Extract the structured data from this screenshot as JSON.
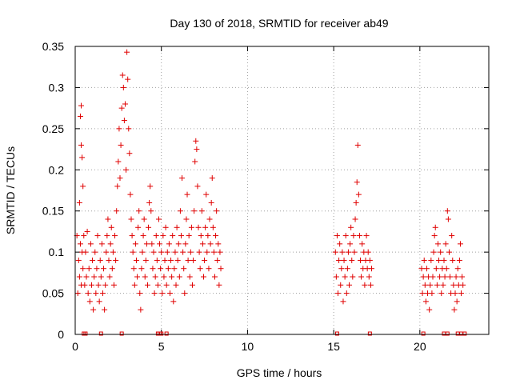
{
  "chart_data": {
    "type": "scatter",
    "title": "Day 130 of 2018, SRMTID for receiver ab49",
    "xlabel": "GPS time / hours",
    "ylabel": "SRMTID / TECUs",
    "xlim": [
      0,
      24
    ],
    "ylim": [
      0,
      0.35
    ],
    "grid": true,
    "marker": "+",
    "color": "#e00000",
    "x_ticks": [
      {
        "value": 0,
        "label": "0"
      },
      {
        "value": 5,
        "label": "5"
      },
      {
        "value": 10,
        "label": "10"
      },
      {
        "value": 15,
        "label": "15"
      },
      {
        "value": 20,
        "label": "20"
      }
    ],
    "y_ticks": [
      {
        "value": 0,
        "label": "0"
      },
      {
        "value": 0.05,
        "label": "0.05"
      },
      {
        "value": 0.1,
        "label": "0.1"
      },
      {
        "value": 0.15,
        "label": "0.15"
      },
      {
        "value": 0.2,
        "label": "0.2"
      },
      {
        "value": 0.25,
        "label": "0.25"
      },
      {
        "value": 0.3,
        "label": "0.3"
      },
      {
        "value": 0.35,
        "label": "0.35"
      }
    ],
    "series": [
      {
        "name": "SRMTID",
        "points": [
          [
            0.1,
            0.12
          ],
          [
            0.15,
            0.05
          ],
          [
            0.2,
            0.09
          ],
          [
            0.25,
            0.16
          ],
          [
            0.25,
            0.07
          ],
          [
            0.3,
            0.265
          ],
          [
            0.3,
            0.11
          ],
          [
            0.35,
            0.278
          ],
          [
            0.35,
            0.23
          ],
          [
            0.35,
            0.06
          ],
          [
            0.4,
            0.215
          ],
          [
            0.4,
            0.1
          ],
          [
            0.45,
            0.18
          ],
          [
            0.45,
            0.08
          ],
          [
            0.5,
            0.12
          ],
          [
            0.55,
            0.06
          ],
          [
            0.6,
            0.1
          ],
          [
            0.65,
            0.07
          ],
          [
            0.7,
            0.125
          ],
          [
            0.75,
            0.05
          ],
          [
            0.8,
            0.08
          ],
          [
            0.85,
            0.04
          ],
          [
            0.9,
            0.11
          ],
          [
            0.95,
            0.06
          ],
          [
            1.0,
            0.09
          ],
          [
            1.05,
            0.03
          ],
          [
            1.1,
            0.07
          ],
          [
            1.15,
            0.1
          ],
          [
            1.2,
            0.05
          ],
          [
            1.25,
            0.08
          ],
          [
            1.3,
            0.12
          ],
          [
            1.35,
            0.06
          ],
          [
            1.4,
            0.04
          ],
          [
            1.45,
            0.09
          ],
          [
            1.5,
            0.07
          ],
          [
            1.55,
            0.11
          ],
          [
            1.6,
            0.05
          ],
          [
            1.65,
            0.08
          ],
          [
            1.7,
            0.03
          ],
          [
            1.75,
            0.06
          ],
          [
            1.8,
            0.1
          ],
          [
            1.85,
            0.12
          ],
          [
            1.9,
            0.14
          ],
          [
            1.95,
            0.09
          ],
          [
            2.0,
            0.07
          ],
          [
            2.05,
            0.11
          ],
          [
            2.1,
            0.13
          ],
          [
            2.15,
            0.08
          ],
          [
            2.2,
            0.1
          ],
          [
            2.25,
            0.06
          ],
          [
            2.3,
            0.12
          ],
          [
            2.35,
            0.09
          ],
          [
            2.4,
            0.15
          ],
          [
            2.45,
            0.18
          ],
          [
            2.5,
            0.21
          ],
          [
            2.55,
            0.25
          ],
          [
            2.6,
            0.19
          ],
          [
            2.65,
            0.23
          ],
          [
            2.7,
            0.275
          ],
          [
            2.75,
            0.315
          ],
          [
            2.8,
            0.3
          ],
          [
            2.85,
            0.26
          ],
          [
            2.9,
            0.28
          ],
          [
            2.95,
            0.2
          ],
          [
            3.0,
            0.343
          ],
          [
            3.05,
            0.31
          ],
          [
            3.1,
            0.25
          ],
          [
            3.15,
            0.22
          ],
          [
            3.2,
            0.17
          ],
          [
            3.25,
            0.14
          ],
          [
            3.3,
            0.12
          ],
          [
            3.35,
            0.1
          ],
          [
            3.4,
            0.08
          ],
          [
            3.45,
            0.06
          ],
          [
            3.5,
            0.11
          ],
          [
            3.55,
            0.09
          ],
          [
            3.6,
            0.07
          ],
          [
            3.65,
            0.13
          ],
          [
            3.7,
            0.15
          ],
          [
            3.75,
            0.05
          ],
          [
            3.8,
            0.03
          ],
          [
            3.85,
            0.08
          ],
          [
            3.9,
            0.1
          ],
          [
            3.95,
            0.12
          ],
          [
            4.0,
            0.14
          ],
          [
            4.05,
            0.07
          ],
          [
            4.1,
            0.09
          ],
          [
            4.15,
            0.11
          ],
          [
            4.2,
            0.06
          ],
          [
            4.25,
            0.13
          ],
          [
            4.3,
            0.16
          ],
          [
            4.35,
            0.18
          ],
          [
            4.4,
            0.15
          ],
          [
            4.45,
            0.11
          ],
          [
            4.5,
            0.08
          ],
          [
            4.55,
            0.1
          ],
          [
            4.6,
            0.05
          ],
          [
            4.65,
            0.07
          ],
          [
            4.7,
            0.12
          ],
          [
            4.75,
            0.09
          ],
          [
            4.8,
            0.06
          ],
          [
            4.85,
            0.14
          ],
          [
            4.9,
            0.11
          ],
          [
            4.95,
            0.08
          ],
          [
            5.0,
            0.1
          ],
          [
            5.05,
            0.05
          ],
          [
            5.1,
            0.12
          ],
          [
            5.15,
            0.07
          ],
          [
            5.2,
            0.09
          ],
          [
            5.25,
            0.13
          ],
          [
            5.3,
            0.06
          ],
          [
            5.35,
            0.1
          ],
          [
            5.4,
            0.08
          ],
          [
            5.45,
            0.11
          ],
          [
            5.5,
            0.05
          ],
          [
            5.55,
            0.09
          ],
          [
            5.6,
            0.07
          ],
          [
            5.65,
            0.12
          ],
          [
            5.7,
            0.04
          ],
          [
            5.75,
            0.08
          ],
          [
            5.8,
            0.1
          ],
          [
            5.85,
            0.06
          ],
          [
            5.9,
            0.13
          ],
          [
            5.95,
            0.09
          ],
          [
            6.0,
            0.11
          ],
          [
            6.05,
            0.07
          ],
          [
            6.1,
            0.15
          ],
          [
            6.15,
            0.12
          ],
          [
            6.2,
            0.19
          ],
          [
            6.25,
            0.1
          ],
          [
            6.3,
            0.08
          ],
          [
            6.35,
            0.05
          ],
          [
            6.4,
            0.11
          ],
          [
            6.45,
            0.14
          ],
          [
            6.5,
            0.17
          ],
          [
            6.55,
            0.09
          ],
          [
            6.6,
            0.12
          ],
          [
            6.65,
            0.07
          ],
          [
            6.7,
            0.1
          ],
          [
            6.75,
            0.13
          ],
          [
            6.8,
            0.06
          ],
          [
            6.85,
            0.09
          ],
          [
            6.9,
            0.15
          ],
          [
            6.95,
            0.21
          ],
          [
            7.0,
            0.235
          ],
          [
            7.05,
            0.225
          ],
          [
            7.1,
            0.18
          ],
          [
            7.15,
            0.13
          ],
          [
            7.2,
            0.1
          ],
          [
            7.25,
            0.08
          ],
          [
            7.3,
            0.12
          ],
          [
            7.35,
            0.15
          ],
          [
            7.4,
            0.11
          ],
          [
            7.45,
            0.07
          ],
          [
            7.5,
            0.09
          ],
          [
            7.55,
            0.13
          ],
          [
            7.6,
            0.17
          ],
          [
            7.65,
            0.1
          ],
          [
            7.7,
            0.12
          ],
          [
            7.75,
            0.08
          ],
          [
            7.8,
            0.14
          ],
          [
            7.85,
            0.11
          ],
          [
            7.9,
            0.16
          ],
          [
            7.95,
            0.19
          ],
          [
            8.0,
            0.13
          ],
          [
            8.05,
            0.1
          ],
          [
            8.1,
            0.07
          ],
          [
            8.15,
            0.12
          ],
          [
            8.2,
            0.15
          ],
          [
            8.25,
            0.09
          ],
          [
            8.3,
            0.11
          ],
          [
            8.35,
            0.06
          ],
          [
            8.4,
            0.1
          ],
          [
            8.45,
            0.08
          ],
          [
            15.1,
            0.1
          ],
          [
            15.15,
            0.07
          ],
          [
            15.2,
            0.12
          ],
          [
            15.25,
            0.05
          ],
          [
            15.3,
            0.09
          ],
          [
            15.35,
            0.11
          ],
          [
            15.4,
            0.06
          ],
          [
            15.45,
            0.08
          ],
          [
            15.5,
            0.1
          ],
          [
            15.55,
            0.04
          ],
          [
            15.6,
            0.09
          ],
          [
            15.65,
            0.07
          ],
          [
            15.7,
            0.12
          ],
          [
            15.75,
            0.05
          ],
          [
            15.8,
            0.08
          ],
          [
            15.85,
            0.1
          ],
          [
            15.9,
            0.06
          ],
          [
            15.95,
            0.11
          ],
          [
            16.0,
            0.13
          ],
          [
            16.05,
            0.09
          ],
          [
            16.1,
            0.07
          ],
          [
            16.15,
            0.12
          ],
          [
            16.2,
            0.1
          ],
          [
            16.25,
            0.14
          ],
          [
            16.3,
            0.16
          ],
          [
            16.35,
            0.185
          ],
          [
            16.4,
            0.23
          ],
          [
            16.45,
            0.17
          ],
          [
            16.5,
            0.12
          ],
          [
            16.55,
            0.09
          ],
          [
            16.6,
            0.07
          ],
          [
            16.65,
            0.11
          ],
          [
            16.7,
            0.08
          ],
          [
            16.75,
            0.1
          ],
          [
            16.8,
            0.06
          ],
          [
            16.85,
            0.09
          ],
          [
            16.9,
            0.12
          ],
          [
            16.95,
            0.08
          ],
          [
            17.0,
            0.1
          ],
          [
            17.05,
            0.07
          ],
          [
            17.1,
            0.09
          ],
          [
            17.15,
            0.06
          ],
          [
            17.2,
            0.08
          ],
          [
            20.1,
            0.08
          ],
          [
            20.15,
            0.05
          ],
          [
            20.2,
            0.07
          ],
          [
            20.25,
            0.09
          ],
          [
            20.3,
            0.06
          ],
          [
            20.35,
            0.04
          ],
          [
            20.4,
            0.08
          ],
          [
            20.45,
            0.05
          ],
          [
            20.5,
            0.07
          ],
          [
            20.55,
            0.03
          ],
          [
            20.6,
            0.06
          ],
          [
            20.65,
            0.09
          ],
          [
            20.7,
            0.05
          ],
          [
            20.75,
            0.07
          ],
          [
            20.8,
            0.1
          ],
          [
            20.85,
            0.12
          ],
          [
            20.9,
            0.13
          ],
          [
            20.95,
            0.08
          ],
          [
            21.0,
            0.06
          ],
          [
            21.05,
            0.11
          ],
          [
            21.1,
            0.09
          ],
          [
            21.15,
            0.07
          ],
          [
            21.2,
            0.1
          ],
          [
            21.25,
            0.05
          ],
          [
            21.3,
            0.08
          ],
          [
            21.35,
            0.06
          ],
          [
            21.4,
            0.09
          ],
          [
            21.45,
            0.07
          ],
          [
            21.5,
            0.11
          ],
          [
            21.55,
            0.08
          ],
          [
            21.6,
            0.15
          ],
          [
            21.65,
            0.14
          ],
          [
            21.7,
            0.1
          ],
          [
            21.75,
            0.07
          ],
          [
            21.8,
            0.05
          ],
          [
            21.85,
            0.12
          ],
          [
            21.9,
            0.09
          ],
          [
            21.95,
            0.06
          ],
          [
            22.0,
            0.03
          ],
          [
            22.05,
            0.05
          ],
          [
            22.1,
            0.07
          ],
          [
            22.15,
            0.04
          ],
          [
            22.2,
            0.08
          ],
          [
            22.25,
            0.06
          ],
          [
            22.3,
            0.09
          ],
          [
            22.35,
            0.11
          ],
          [
            22.4,
            0.05
          ],
          [
            22.45,
            0.07
          ],
          [
            22.5,
            0.06
          ]
        ]
      }
    ],
    "baseline_marks": [
      0.5,
      0.6,
      1.5,
      2.7,
      4.8,
      4.9,
      5.0,
      5.3,
      15.2,
      17.1,
      20.2,
      21.4,
      21.6,
      22.2,
      22.4,
      22.6
    ]
  }
}
